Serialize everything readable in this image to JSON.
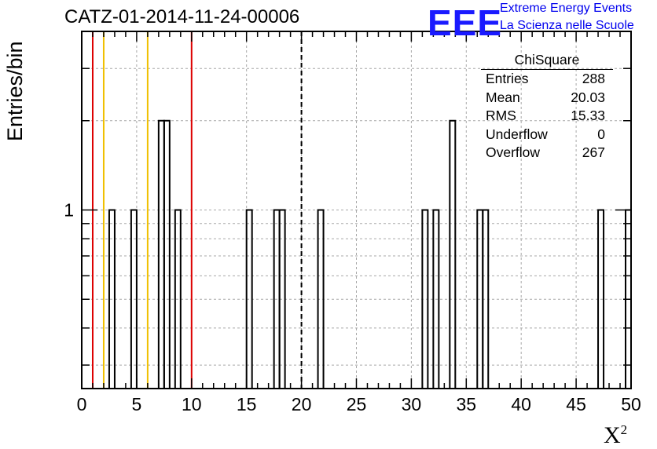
{
  "title": "CATZ-01-2014-11-24-00006",
  "logo": {
    "mark": "EEE",
    "line1": "Extreme Energy Events",
    "line2": "La Scienza nelle Scuole",
    "color": "#1a1aff"
  },
  "stats": {
    "name": "ChiSquare",
    "rows": [
      {
        "label": "Entries",
        "value": "288"
      },
      {
        "label": "Mean",
        "value": "20.03"
      },
      {
        "label": "RMS",
        "value": "15.33"
      },
      {
        "label": "Underflow",
        "value": "0"
      },
      {
        "label": "Overflow",
        "value": "267"
      }
    ]
  },
  "chart_data": {
    "type": "histogram",
    "title": "CATZ-01-2014-11-24-00006",
    "xlabel": "X",
    "xlabel_sup": "2",
    "ylabel": "Entries/bin",
    "xlim": [
      0,
      50
    ],
    "ylim": [
      0.25,
      4
    ],
    "yscale": "log",
    "grid": true,
    "bin_width": 0.5,
    "x_ticks": [
      "0",
      "5",
      "10",
      "15",
      "20",
      "25",
      "30",
      "35",
      "40",
      "45",
      "50"
    ],
    "y_ticks": [
      "1"
    ],
    "bins": [
      {
        "x0": 2.5,
        "count": 1
      },
      {
        "x0": 4.5,
        "count": 1
      },
      {
        "x0": 7.0,
        "count": 2
      },
      {
        "x0": 7.5,
        "count": 2
      },
      {
        "x0": 8.5,
        "count": 1
      },
      {
        "x0": 15.0,
        "count": 1
      },
      {
        "x0": 17.5,
        "count": 1
      },
      {
        "x0": 18.0,
        "count": 1
      },
      {
        "x0": 21.5,
        "count": 1
      },
      {
        "x0": 31.0,
        "count": 1
      },
      {
        "x0": 32.0,
        "count": 1
      },
      {
        "x0": 33.5,
        "count": 2
      },
      {
        "x0": 36.0,
        "count": 1
      },
      {
        "x0": 36.5,
        "count": 1
      },
      {
        "x0": 47.0,
        "count": 1
      },
      {
        "x0": 49.5,
        "count": 1
      }
    ],
    "vertical_lines": [
      {
        "x": 1,
        "color": "#dd0000",
        "style": "solid"
      },
      {
        "x": 2,
        "color": "#f0c000",
        "style": "solid"
      },
      {
        "x": 6,
        "color": "#f0c000",
        "style": "solid"
      },
      {
        "x": 10,
        "color": "#dd0000",
        "style": "solid"
      },
      {
        "x": 20,
        "color": "#000000",
        "style": "dashed"
      }
    ]
  }
}
